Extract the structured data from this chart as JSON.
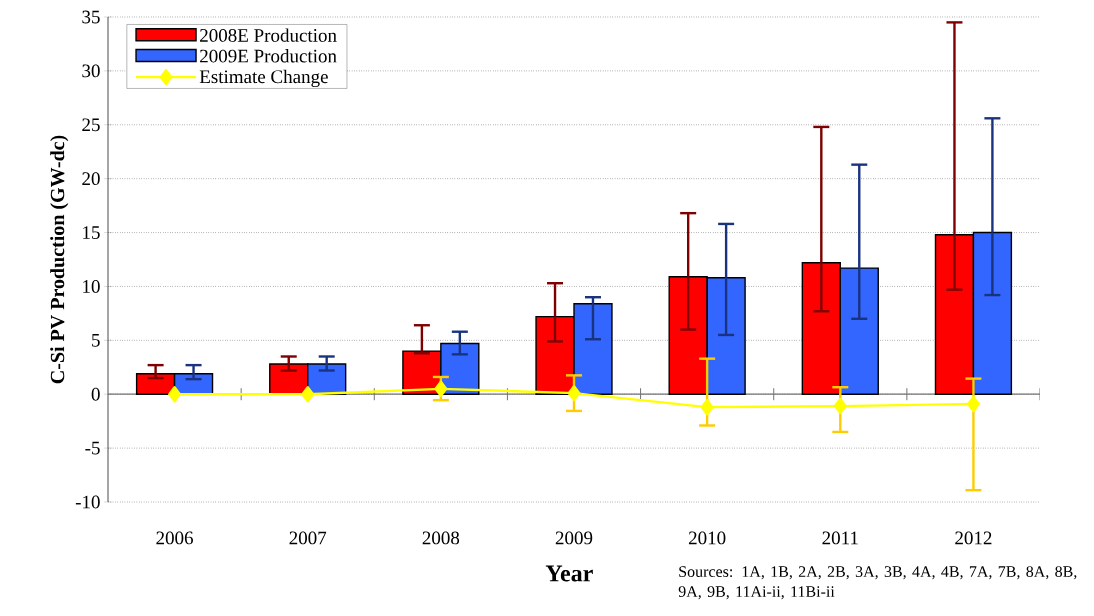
{
  "chart_data": {
    "type": "bar",
    "categories": [
      "2006",
      "2007",
      "2008",
      "2009",
      "2010",
      "2011",
      "2012"
    ],
    "xlabel": "Year",
    "ylabel": "C-Si PV Production (GW-dc)",
    "ylim": [
      -10,
      35
    ],
    "yticks": [
      -10,
      -5,
      0,
      5,
      10,
      15,
      20,
      25,
      30,
      35
    ],
    "grid": "y",
    "legend": "top left",
    "annotations": [
      "Sources: 1A, 1B, 2A, 2B, 3A, 3B, 4A, 4B, 7A, 7B, 8A, 8B, 9A, 9B, 11Ai-ii, 11Bi-ii"
    ],
    "series": [
      {
        "name": "2008E Production",
        "color": "#ff0000",
        "values": [
          1.9,
          2.8,
          4.0,
          7.2,
          10.9,
          12.2,
          14.8
        ],
        "errors": [
          [
            1.5,
            2.7
          ],
          [
            2.2,
            3.5
          ],
          [
            3.8,
            6.4
          ],
          [
            4.9,
            10.3
          ],
          [
            6.0,
            16.8
          ],
          [
            7.7,
            24.8
          ],
          [
            9.7,
            34.5
          ]
        ]
      },
      {
        "name": "2009E Production",
        "color": "#3366ff",
        "values": [
          1.9,
          2.8,
          4.7,
          8.4,
          10.8,
          11.7,
          15.0
        ],
        "errors": [
          [
            1.4,
            2.7
          ],
          [
            2.2,
            3.5
          ],
          [
            3.7,
            5.8
          ],
          [
            5.1,
            9.0
          ],
          [
            5.5,
            15.8
          ],
          [
            7.0,
            21.3
          ],
          [
            9.2,
            25.6
          ]
        ]
      },
      {
        "name": "Estimate Change",
        "type": "line",
        "color": "#ffff00",
        "marker": "diamond",
        "values": [
          0,
          0,
          0.5,
          0.1,
          -1.2,
          -1.1,
          -0.9
        ],
        "errors": [
          null,
          null,
          [
            -0.55,
            1.6
          ],
          [
            -1.55,
            1.75
          ],
          [
            -2.9,
            3.3
          ],
          [
            -3.5,
            0.65
          ],
          [
            -8.9,
            1.45
          ]
        ]
      }
    ]
  }
}
